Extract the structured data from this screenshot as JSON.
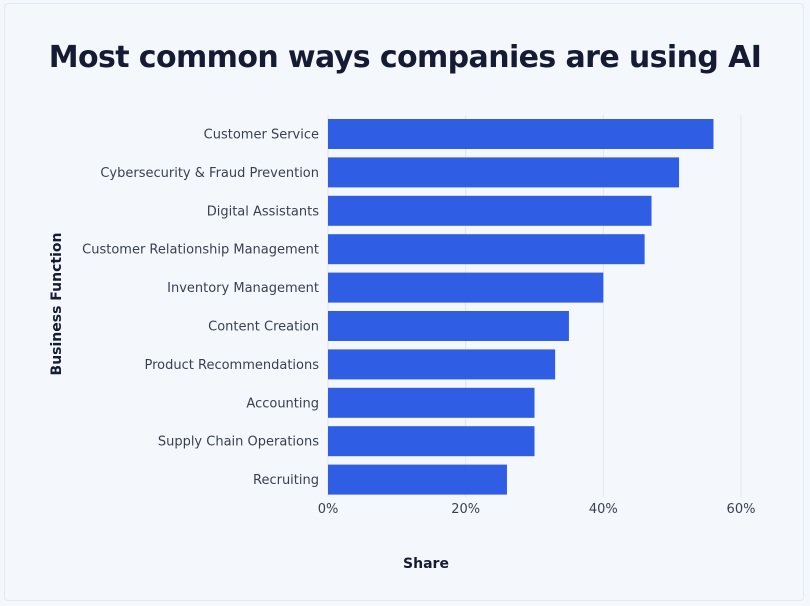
{
  "colors": {
    "background": "#f4f8fd",
    "bar": "#2f5de4",
    "grid": "#e2e6ec",
    "title": "#151b33",
    "label": "#3a3f4f"
  },
  "chart_data": {
    "type": "bar",
    "orientation": "horizontal",
    "title": "Most common ways companies are using AI",
    "xlabel": "Share",
    "ylabel": "Business Function",
    "categories": [
      "Customer Service",
      "Cybersecurity & Fraud Prevention",
      "Digital Assistants",
      "Customer Relationship Management",
      "Inventory Management",
      "Content Creation",
      "Product Recommendations",
      "Accounting",
      "Supply Chain Operations",
      "Recruiting"
    ],
    "values": [
      56,
      51,
      47,
      46,
      40,
      35,
      33,
      30,
      30,
      26
    ],
    "xlim": [
      0,
      60
    ],
    "xticks": [
      0,
      20,
      40,
      60
    ],
    "xtick_labels": [
      "0%",
      "20%",
      "40%",
      "60%"
    ],
    "grid": true
  }
}
